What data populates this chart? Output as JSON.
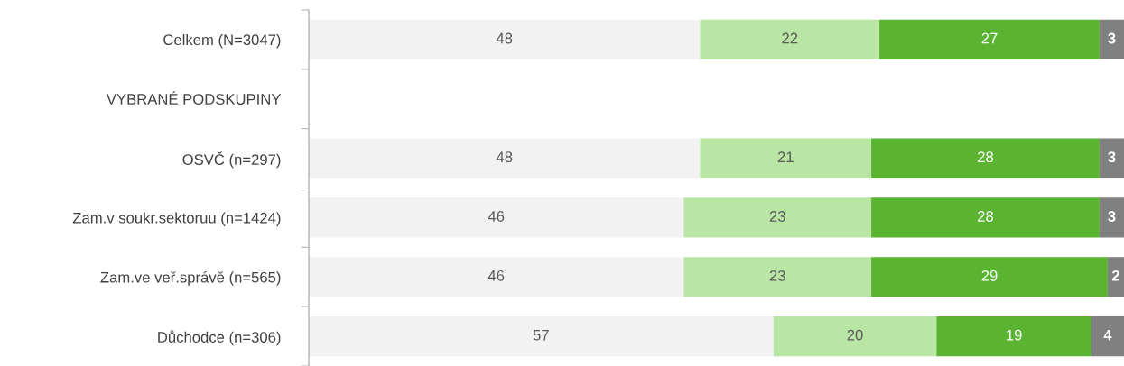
{
  "chart_data": {
    "type": "bar",
    "orientation": "horizontal",
    "stacked": true,
    "data_labels": true,
    "grid": false,
    "legend": false,
    "tick_labels": "y",
    "xlim": [
      0,
      100
    ],
    "categories": [
      "Celkem (N=3047)",
      "VYBRANÉ PODSKUPINY",
      "OSVČ (n=297)",
      "Zam.v soukr.sektoruu (n=1424)",
      "Zam.ve veř.správě (n=565)",
      "Důchodce (n=306)"
    ],
    "series": [
      {
        "color": "#f2f2f2",
        "values": [
          48,
          null,
          48,
          46,
          46,
          57
        ]
      },
      {
        "color": "#b9e6a5",
        "values": [
          22,
          null,
          21,
          23,
          23,
          20
        ]
      },
      {
        "color": "#5ab432",
        "values": [
          27,
          null,
          28,
          28,
          29,
          19
        ]
      },
      {
        "color": "#808080",
        "values": [
          3,
          null,
          3,
          3,
          2,
          4
        ]
      }
    ]
  }
}
